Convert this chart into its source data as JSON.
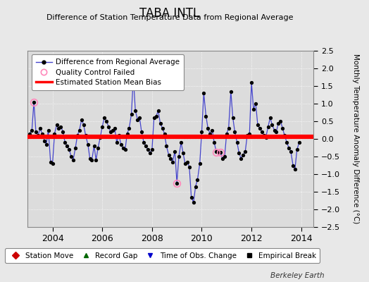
{
  "title": "TABA INTL",
  "subtitle": "Difference of Station Temperature Data from Regional Average",
  "ylabel": "Monthly Temperature Anomaly Difference (°C)",
  "xlabel_ticks": [
    2004,
    2006,
    2008,
    2010,
    2012,
    2014
  ],
  "ylim": [
    -2.5,
    2.5
  ],
  "xlim": [
    2003.0,
    2014.5
  ],
  "bias_y": 0.07,
  "bias_color": "#FF0000",
  "line_color": "#4444CC",
  "marker_color": "#000000",
  "qc_fail_color": "#FF88BB",
  "qc_fail_points": [
    [
      2003.25,
      1.05
    ],
    [
      2009.0,
      -1.25
    ],
    [
      2010.58,
      -0.38
    ],
    [
      2010.75,
      -0.38
    ]
  ],
  "plot_bg": "#DCDCDC",
  "fig_bg": "#E8E8E8",
  "time_data": [
    2003.08,
    2003.17,
    2003.25,
    2003.33,
    2003.42,
    2003.5,
    2003.58,
    2003.67,
    2003.75,
    2003.83,
    2003.92,
    2004.0,
    2004.08,
    2004.17,
    2004.25,
    2004.33,
    2004.42,
    2004.5,
    2004.58,
    2004.67,
    2004.75,
    2004.83,
    2004.92,
    2005.0,
    2005.08,
    2005.17,
    2005.25,
    2005.33,
    2005.42,
    2005.5,
    2005.58,
    2005.67,
    2005.75,
    2005.83,
    2005.92,
    2006.0,
    2006.08,
    2006.17,
    2006.25,
    2006.33,
    2006.42,
    2006.5,
    2006.58,
    2006.67,
    2006.75,
    2006.83,
    2006.92,
    2007.0,
    2007.08,
    2007.17,
    2007.25,
    2007.33,
    2007.42,
    2007.5,
    2007.58,
    2007.67,
    2007.75,
    2007.83,
    2007.92,
    2008.0,
    2008.08,
    2008.17,
    2008.25,
    2008.33,
    2008.42,
    2008.5,
    2008.58,
    2008.67,
    2008.75,
    2008.83,
    2008.92,
    2009.0,
    2009.08,
    2009.17,
    2009.25,
    2009.33,
    2009.42,
    2009.5,
    2009.58,
    2009.67,
    2009.75,
    2009.83,
    2009.92,
    2010.0,
    2010.08,
    2010.17,
    2010.25,
    2010.33,
    2010.42,
    2010.5,
    2010.58,
    2010.67,
    2010.75,
    2010.83,
    2010.92,
    2011.0,
    2011.08,
    2011.17,
    2011.25,
    2011.33,
    2011.42,
    2011.5,
    2011.58,
    2011.67,
    2011.75,
    2011.83,
    2011.92,
    2012.0,
    2012.08,
    2012.17,
    2012.25,
    2012.33,
    2012.42,
    2012.5,
    2012.58,
    2012.67,
    2012.75,
    2012.83,
    2012.92,
    2013.0,
    2013.08,
    2013.17,
    2013.25,
    2013.33,
    2013.42,
    2013.5,
    2013.58,
    2013.67,
    2013.75,
    2013.83,
    2013.92
  ],
  "values": [
    0.15,
    0.25,
    1.05,
    0.2,
    0.1,
    0.3,
    0.15,
    -0.05,
    -0.15,
    0.25,
    -0.65,
    -0.7,
    0.15,
    0.4,
    0.3,
    0.35,
    0.2,
    -0.1,
    -0.2,
    -0.3,
    -0.5,
    -0.6,
    -0.25,
    0.1,
    0.25,
    0.55,
    0.4,
    0.1,
    -0.15,
    -0.55,
    -0.6,
    -0.2,
    -0.6,
    -0.25,
    0.05,
    0.35,
    0.6,
    0.5,
    0.35,
    0.2,
    0.25,
    0.3,
    -0.1,
    0.1,
    -0.15,
    -0.25,
    -0.3,
    0.15,
    0.3,
    0.7,
    1.75,
    0.8,
    0.55,
    0.6,
    0.2,
    -0.1,
    -0.2,
    -0.3,
    -0.4,
    -0.3,
    0.6,
    0.65,
    0.8,
    0.45,
    0.3,
    0.15,
    -0.2,
    -0.45,
    -0.55,
    -0.65,
    -0.35,
    -1.25,
    -0.5,
    -0.1,
    -0.4,
    -0.7,
    -0.65,
    -0.8,
    -1.65,
    -1.8,
    -1.35,
    -1.15,
    -0.7,
    0.2,
    1.3,
    0.65,
    0.3,
    0.15,
    0.25,
    -0.1,
    -0.35,
    -0.38,
    -0.38,
    -0.55,
    -0.5,
    0.15,
    0.3,
    1.35,
    0.6,
    0.2,
    -0.1,
    -0.4,
    -0.55,
    -0.45,
    -0.35,
    0.1,
    0.15,
    1.6,
    0.85,
    1.0,
    0.4,
    0.3,
    0.2,
    0.1,
    0.05,
    0.35,
    0.6,
    0.4,
    0.25,
    0.2,
    0.45,
    0.5,
    0.3,
    0.1,
    -0.1,
    -0.25,
    -0.35,
    -0.75,
    -0.85,
    -0.3,
    -0.1
  ],
  "berkeley_earth_text": "Berkeley Earth",
  "legend_items": [
    {
      "label": "Difference from Regional Average",
      "color": "#4444CC",
      "marker": "o"
    },
    {
      "label": "Quality Control Failed",
      "color": "#FF88BB",
      "marker": "o"
    },
    {
      "label": "Estimated Station Mean Bias",
      "color": "#FF0000"
    }
  ],
  "bottom_legend_items": [
    {
      "label": "Station Move",
      "color": "#CC0000",
      "marker": "D"
    },
    {
      "label": "Record Gap",
      "color": "#006600",
      "marker": "^"
    },
    {
      "label": "Time of Obs. Change",
      "color": "#0000CC",
      "marker": "v"
    },
    {
      "label": "Empirical Break",
      "color": "#000000",
      "marker": "s"
    }
  ]
}
